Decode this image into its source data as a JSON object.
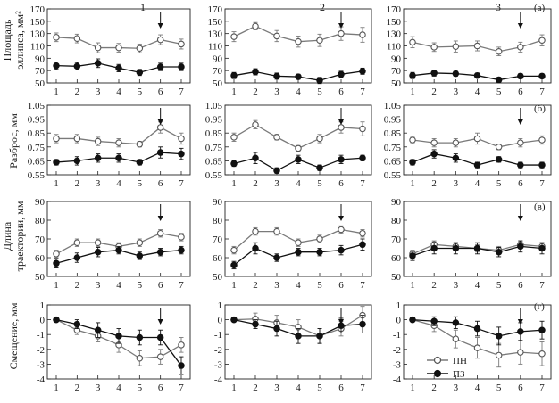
{
  "figure": {
    "column_labels": [
      "1",
      "2",
      "3"
    ],
    "row_letters": [
      "(а)",
      "(б)",
      "(в)",
      "(г)"
    ],
    "row_ylabels": [
      [
        "Площадь",
        "эллипса, мм²"
      ],
      [
        "Разброс, мм"
      ],
      [
        "Длина",
        "траектории, мм"
      ],
      [
        "Смещение, мм"
      ]
    ],
    "legend": [
      {
        "label": "ПН",
        "marker": "open-circle",
        "color": "#7a7a7a"
      },
      {
        "label": "ПЗ",
        "marker": "filled-circle",
        "color": "#111111"
      }
    ]
  },
  "chart_data": [
    {
      "type": "line",
      "row": 1,
      "col": 1,
      "x": [
        1,
        2,
        3,
        4,
        5,
        6,
        7
      ],
      "ylim": [
        50,
        170
      ],
      "yticks": [
        50,
        70,
        90,
        110,
        130,
        150,
        170
      ],
      "arrow_at": 6,
      "series": [
        {
          "name": "ПН",
          "values": [
            124,
            122,
            107,
            107,
            106,
            120,
            113
          ],
          "err": [
            7,
            7,
            8,
            7,
            7,
            8,
            8
          ]
        },
        {
          "name": "ПЗ",
          "values": [
            78,
            77,
            82,
            74,
            67,
            76,
            76
          ],
          "err": [
            6,
            6,
            7,
            6,
            5,
            6,
            6
          ]
        }
      ]
    },
    {
      "type": "line",
      "row": 1,
      "col": 2,
      "x": [
        1,
        2,
        3,
        4,
        5,
        6,
        7
      ],
      "ylim": [
        50,
        170
      ],
      "yticks": [
        50,
        70,
        90,
        110,
        130,
        150,
        170
      ],
      "arrow_at": 6,
      "series": [
        {
          "name": "ПН",
          "values": [
            125,
            142,
            126,
            117,
            119,
            130,
            128
          ],
          "err": [
            8,
            6,
            9,
            9,
            10,
            11,
            12
          ]
        },
        {
          "name": "ПЗ",
          "values": [
            62,
            68,
            61,
            60,
            54,
            64,
            69
          ],
          "err": [
            5,
            5,
            5,
            4,
            5,
            5,
            5
          ]
        }
      ]
    },
    {
      "type": "line",
      "row": 1,
      "col": 3,
      "x": [
        1,
        2,
        3,
        4,
        5,
        6,
        7
      ],
      "ylim": [
        50,
        170
      ],
      "yticks": [
        50,
        70,
        90,
        110,
        130,
        150,
        170
      ],
      "arrow_at": 6,
      "series": [
        {
          "name": "ПН",
          "values": [
            116,
            108,
            109,
            110,
            101,
            108,
            119
          ],
          "err": [
            9,
            7,
            9,
            8,
            7,
            8,
            9
          ]
        },
        {
          "name": "ПЗ",
          "values": [
            62,
            66,
            65,
            62,
            55,
            61,
            61
          ],
          "err": [
            5,
            5,
            4,
            4,
            4,
            4,
            4
          ]
        }
      ]
    },
    {
      "type": "line",
      "row": 2,
      "col": 1,
      "x": [
        1,
        2,
        3,
        4,
        5,
        6,
        7
      ],
      "ylim": [
        0.55,
        1.05
      ],
      "yticks": [
        0.55,
        0.65,
        0.75,
        0.85,
        0.95,
        1.05
      ],
      "arrow_at": 6,
      "series": [
        {
          "name": "ПН",
          "values": [
            0.81,
            0.81,
            0.79,
            0.78,
            0.77,
            0.89,
            0.81
          ],
          "err": [
            0.03,
            0.03,
            0.03,
            0.03,
            0.02,
            0.04,
            0.04
          ]
        },
        {
          "name": "ПЗ",
          "values": [
            0.64,
            0.65,
            0.67,
            0.67,
            0.64,
            0.71,
            0.7
          ],
          "err": [
            0.02,
            0.03,
            0.03,
            0.03,
            0.02,
            0.04,
            0.04
          ]
        }
      ]
    },
    {
      "type": "line",
      "row": 2,
      "col": 2,
      "x": [
        1,
        2,
        3,
        4,
        5,
        6,
        7
      ],
      "ylim": [
        0.55,
        1.05
      ],
      "yticks": [
        0.55,
        0.65,
        0.75,
        0.85,
        0.95,
        1.05
      ],
      "arrow_at": 6,
      "series": [
        {
          "name": "ПН",
          "values": [
            0.82,
            0.91,
            0.82,
            0.74,
            0.81,
            0.89,
            0.88
          ],
          "err": [
            0.03,
            0.03,
            0.02,
            0.02,
            0.03,
            0.04,
            0.05
          ]
        },
        {
          "name": "ПЗ",
          "values": [
            0.63,
            0.67,
            0.58,
            0.66,
            0.6,
            0.66,
            0.67
          ],
          "err": [
            0.02,
            0.04,
            0.02,
            0.03,
            0.02,
            0.03,
            0.02
          ]
        }
      ]
    },
    {
      "type": "line",
      "row": 2,
      "col": 3,
      "x": [
        1,
        2,
        3,
        4,
        5,
        6,
        7
      ],
      "ylim": [
        0.55,
        1.05
      ],
      "yticks": [
        0.55,
        0.65,
        0.75,
        0.85,
        0.95,
        1.05
      ],
      "arrow_at": 6,
      "series": [
        {
          "name": "ПН",
          "values": [
            0.8,
            0.78,
            0.78,
            0.81,
            0.75,
            0.78,
            0.8
          ],
          "err": [
            0.02,
            0.03,
            0.03,
            0.04,
            0.02,
            0.03,
            0.03
          ]
        },
        {
          "name": "ПЗ",
          "values": [
            0.64,
            0.7,
            0.67,
            0.62,
            0.66,
            0.62,
            0.62
          ],
          "err": [
            0.02,
            0.03,
            0.03,
            0.02,
            0.02,
            0.02,
            0.02
          ]
        }
      ]
    },
    {
      "type": "line",
      "row": 3,
      "col": 1,
      "x": [
        1,
        2,
        3,
        4,
        5,
        6,
        7
      ],
      "ylim": [
        50,
        90
      ],
      "yticks": [
        50,
        60,
        70,
        80,
        90
      ],
      "arrow_at": 6,
      "series": [
        {
          "name": "ПН",
          "values": [
            62,
            68,
            68,
            66,
            68,
            73,
            71
          ],
          "err": [
            2,
            2,
            2,
            2,
            2,
            2,
            2
          ]
        },
        {
          "name": "ПЗ",
          "values": [
            57,
            60,
            63,
            64,
            61,
            63,
            64
          ],
          "err": [
            2.5,
            2.5,
            2.5,
            2,
            2,
            2,
            2
          ]
        }
      ]
    },
    {
      "type": "line",
      "row": 3,
      "col": 2,
      "x": [
        1,
        2,
        3,
        4,
        5,
        6,
        7
      ],
      "ylim": [
        50,
        90
      ],
      "yticks": [
        50,
        60,
        70,
        80,
        90
      ],
      "arrow_at": 6,
      "series": [
        {
          "name": "ПН",
          "values": [
            64,
            74,
            74,
            68,
            70,
            75,
            73
          ],
          "err": [
            2,
            2,
            2,
            2,
            2,
            2,
            2
          ]
        },
        {
          "name": "ПЗ",
          "values": [
            56,
            65,
            60,
            63,
            63,
            64,
            67
          ],
          "err": [
            2,
            3,
            2,
            2,
            2,
            2.5,
            3
          ]
        }
      ]
    },
    {
      "type": "line",
      "row": 3,
      "col": 3,
      "x": [
        1,
        2,
        3,
        4,
        5,
        6,
        7
      ],
      "ylim": [
        50,
        90
      ],
      "yticks": [
        50,
        60,
        70,
        80,
        90
      ],
      "arrow_at": 6,
      "series": [
        {
          "name": "ПН",
          "values": [
            62,
            67,
            66,
            65,
            64,
            67,
            66
          ],
          "err": [
            2,
            2,
            2,
            2,
            2,
            2,
            2
          ]
        },
        {
          "name": "ПЗ",
          "values": [
            61,
            65,
            65,
            65,
            63,
            66,
            65
          ],
          "err": [
            2.5,
            3,
            3,
            3,
            2.5,
            3,
            3
          ]
        }
      ]
    },
    {
      "type": "line",
      "row": 4,
      "col": 1,
      "x": [
        1,
        2,
        3,
        4,
        5,
        6,
        7
      ],
      "ylim": [
        -4,
        1
      ],
      "yticks": [
        -4,
        -3,
        -2,
        -1,
        0,
        1
      ],
      "arrow_at": 6,
      "series": [
        {
          "name": "ПН",
          "values": [
            0,
            -0.7,
            -1.1,
            -1.7,
            -2.6,
            -2.5,
            -1.7
          ],
          "err": [
            0,
            0.3,
            0.4,
            0.5,
            0.5,
            0.5,
            0.5
          ]
        },
        {
          "name": "ПЗ",
          "values": [
            0,
            -0.3,
            -0.7,
            -1.1,
            -1.2,
            -1.2,
            -3.1
          ],
          "err": [
            0,
            0.3,
            0.5,
            0.5,
            0.5,
            0.5,
            0.6
          ]
        }
      ]
    },
    {
      "type": "line",
      "row": 4,
      "col": 2,
      "x": [
        1,
        2,
        3,
        4,
        5,
        6,
        7
      ],
      "ylim": [
        -4,
        1
      ],
      "yticks": [
        -4,
        -3,
        -2,
        -1,
        0,
        1
      ],
      "arrow_at": 6,
      "series": [
        {
          "name": "ПН",
          "values": [
            0,
            0.05,
            -0.2,
            -0.5,
            -1.1,
            -0.6,
            0.3
          ],
          "err": [
            0,
            0.4,
            0.5,
            0.5,
            0.5,
            0.5,
            0.6
          ]
        },
        {
          "name": "ПЗ",
          "values": [
            0,
            -0.3,
            -0.6,
            -1.1,
            -1.1,
            -0.4,
            -0.3
          ],
          "err": [
            0,
            0.3,
            0.5,
            0.5,
            0.5,
            0.5,
            0.6
          ]
        }
      ]
    },
    {
      "type": "line",
      "row": 4,
      "col": 3,
      "x": [
        1,
        2,
        3,
        4,
        5,
        6,
        7
      ],
      "ylim": [
        -4,
        1
      ],
      "yticks": [
        -4,
        -3,
        -2,
        -1,
        0,
        1
      ],
      "arrow_at": 6,
      "series": [
        {
          "name": "ПН",
          "values": [
            0,
            -0.4,
            -1.3,
            -1.9,
            -2.4,
            -2.2,
            -2.3
          ],
          "err": [
            0,
            0.4,
            0.6,
            0.7,
            0.8,
            0.8,
            0.8
          ]
        },
        {
          "name": "ПЗ",
          "values": [
            0,
            -0.1,
            -0.2,
            -0.6,
            -1.1,
            -0.8,
            -0.7
          ],
          "err": [
            0,
            0.3,
            0.4,
            0.5,
            0.6,
            0.6,
            0.6
          ]
        }
      ]
    }
  ]
}
